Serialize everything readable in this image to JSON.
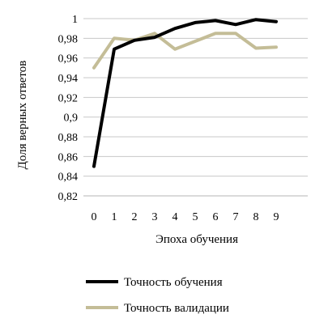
{
  "chart_data": {
    "type": "line",
    "xlabel": "Эпоха обучения",
    "ylabel": "Доля верных ответов",
    "x": [
      0,
      1,
      2,
      3,
      4,
      5,
      6,
      7,
      8,
      9
    ],
    "x_tick_labels": [
      "0",
      "1",
      "2",
      "3",
      "4",
      "5",
      "6",
      "7",
      "8",
      "9"
    ],
    "y_tick_labels": [
      "0,82",
      "0,84",
      "0,86",
      "0,88",
      "0,9",
      "0,92",
      "0,94",
      "0,96",
      "0,98",
      "1"
    ],
    "ylim": [
      0.82,
      1.0
    ],
    "grid": "horizontal",
    "legend": "bottom",
    "series": [
      {
        "name": "Точность обучения",
        "color": "#000000",
        "values": [
          0.85,
          0.969,
          0.978,
          0.981,
          0.99,
          0.996,
          0.998,
          0.994,
          0.999,
          0.997
        ]
      },
      {
        "name": "Точность валидации",
        "color": "#c4bd97",
        "values": [
          0.95,
          0.98,
          0.978,
          0.985,
          0.969,
          0.977,
          0.985,
          0.985,
          0.97,
          0.971
        ]
      }
    ]
  }
}
